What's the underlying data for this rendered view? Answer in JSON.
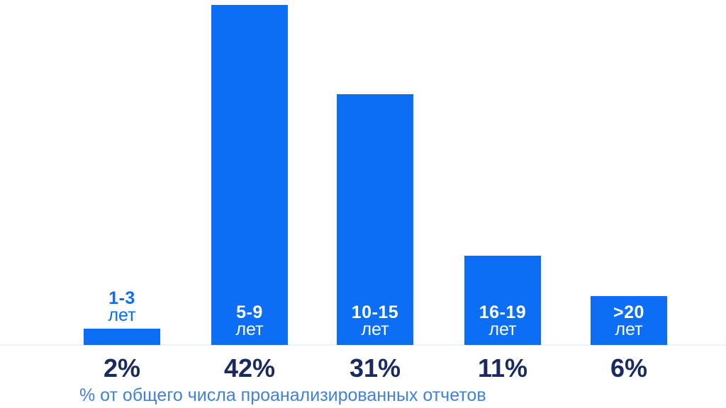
{
  "chart_data": {
    "type": "bar",
    "title": "",
    "xlabel": "",
    "ylabel": "",
    "caption": "% от общего числа проанализированных отчетов",
    "categories": [
      "1-3 лет",
      "5-9 лет",
      "10-15 лет",
      "16-19 лет",
      ">20 лет"
    ],
    "values": [
      2,
      42,
      31,
      11,
      6
    ],
    "value_labels": [
      "2%",
      "42%",
      "31%",
      "11%",
      "6%"
    ],
    "ylim": [
      0,
      42
    ],
    "grid": false,
    "legend": false,
    "bars": [
      {
        "range": "1-3",
        "unit": "лет",
        "value": 2,
        "pct_label": "2%"
      },
      {
        "range": "5-9",
        "unit": "лет",
        "value": 42,
        "pct_label": "42%"
      },
      {
        "range": "10-15",
        "unit": "лет",
        "value": 31,
        "pct_label": "31%"
      },
      {
        "range": "16-19",
        "unit": "лет",
        "value": 11,
        "pct_label": "11%"
      },
      {
        "range": ">20",
        "unit": "лет",
        "value": 6,
        "pct_label": "6%"
      }
    ],
    "colors": {
      "bar": "#0b6ef5",
      "outside_label": "#0b6ef5",
      "inside_label": "#ffffff",
      "pct_text": "#1b2a5e",
      "caption_text": "#4182d7",
      "baseline": "#edf2f8",
      "background": "#ffffff"
    }
  }
}
